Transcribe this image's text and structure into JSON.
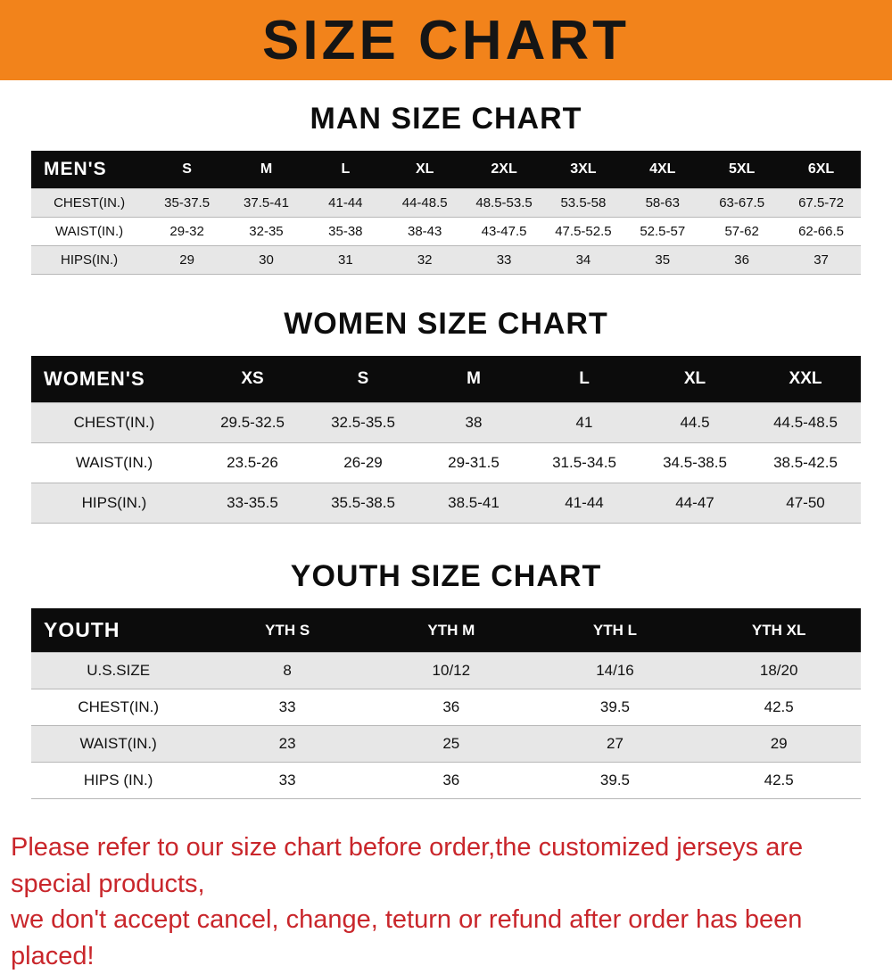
{
  "banner": {
    "title": "SIZE CHART"
  },
  "colors": {
    "banner_bg": "#F2831B",
    "table_header_bg": "#0C0C0C",
    "row_alt_bg": "#E7E7E7",
    "footer_text": "#C9262B"
  },
  "chart_data": [
    {
      "type": "table",
      "title": "MAN SIZE CHART",
      "corner_label": "MEN'S",
      "columns": [
        "S",
        "M",
        "L",
        "XL",
        "2XL",
        "3XL",
        "4XL",
        "5XL",
        "6XL"
      ],
      "rows": [
        {
          "label": "CHEST(IN.)",
          "values": [
            "35-37.5",
            "37.5-41",
            "41-44",
            "44-48.5",
            "48.5-53.5",
            "53.5-58",
            "58-63",
            "63-67.5",
            "67.5-72"
          ]
        },
        {
          "label": "WAIST(IN.)",
          "values": [
            "29-32",
            "32-35",
            "35-38",
            "38-43",
            "43-47.5",
            "47.5-52.5",
            "52.5-57",
            "57-62",
            "62-66.5"
          ]
        },
        {
          "label": "HIPS(IN.)",
          "values": [
            "29",
            "30",
            "31",
            "32",
            "33",
            "34",
            "35",
            "36",
            "37"
          ]
        }
      ]
    },
    {
      "type": "table",
      "title": "WOMEN SIZE CHART",
      "corner_label": "WOMEN'S",
      "columns": [
        "XS",
        "S",
        "M",
        "L",
        "XL",
        "XXL"
      ],
      "rows": [
        {
          "label": "CHEST(IN.)",
          "values": [
            "29.5-32.5",
            "32.5-35.5",
            "38",
            "41",
            "44.5",
            "44.5-48.5"
          ]
        },
        {
          "label": "WAIST(IN.)",
          "values": [
            "23.5-26",
            "26-29",
            "29-31.5",
            "31.5-34.5",
            "34.5-38.5",
            "38.5-42.5"
          ]
        },
        {
          "label": "HIPS(IN.)",
          "values": [
            "33-35.5",
            "35.5-38.5",
            "38.5-41",
            "41-44",
            "44-47",
            "47-50"
          ]
        }
      ]
    },
    {
      "type": "table",
      "title": "YOUTH SIZE CHART",
      "corner_label": "YOUTH",
      "columns": [
        "YTH S",
        "YTH M",
        "YTH L",
        "YTH XL"
      ],
      "rows": [
        {
          "label": "U.S.SIZE",
          "values": [
            "8",
            "10/12",
            "14/16",
            "18/20"
          ]
        },
        {
          "label": "CHEST(IN.)",
          "values": [
            "33",
            "36",
            "39.5",
            "42.5"
          ]
        },
        {
          "label": "WAIST(IN.)",
          "values": [
            "23",
            "25",
            "27",
            "29"
          ]
        },
        {
          "label": "HIPS (IN.)",
          "values": [
            "33",
            "36",
            "39.5",
            "42.5"
          ]
        }
      ]
    }
  ],
  "footer": {
    "lines": [
      "Please refer to our size chart before order,the customized jerseys are special products,",
      "we don't accept cancel, change, teturn or refund after order has been placed!"
    ]
  }
}
